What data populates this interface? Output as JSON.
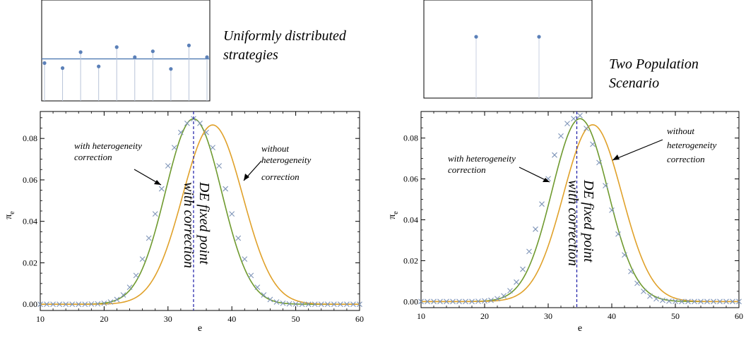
{
  "colors": {
    "with_correction": "#6f9a2f",
    "without_correction": "#e0a12a",
    "markers": "#7f95b8",
    "fixed_point_line": "#1a1aa6",
    "inset_points": "#5b80b8",
    "inset_line": "#4f7ab2"
  },
  "captions": {
    "left": [
      "Uniformly distributed",
      "strategies"
    ],
    "right": [
      "Two Population",
      "Scenario"
    ]
  },
  "annotations": {
    "with": [
      "with heterogeneity",
      "correction"
    ],
    "without": [
      "without",
      "heterogeneity",
      "correction"
    ],
    "fixed_point": [
      "DE fixed point",
      "with correction"
    ]
  },
  "chart_data": [
    {
      "type": "line",
      "panel": "left-main",
      "xlabel": "e",
      "ylabel": "π",
      "ylabel_sub": "e",
      "xlim": [
        10,
        60
      ],
      "ylim": [
        -0.003,
        0.093
      ],
      "xticks": [
        10,
        20,
        30,
        40,
        50,
        60
      ],
      "yticks": [
        0.0,
        0.02,
        0.04,
        0.06,
        0.08
      ],
      "ytick_labels": [
        "0.00",
        "0.02",
        "0.04",
        "0.06",
        "0.08"
      ],
      "fixed_point_x": 34,
      "series": [
        {
          "key": "with_correction",
          "kind": "gaussian",
          "mean": 34,
          "sd": 4.4,
          "peak": 0.0895
        },
        {
          "key": "without_correction",
          "kind": "gaussian",
          "mean": 37,
          "sd": 4.7,
          "peak": 0.0865
        },
        {
          "key": "markers",
          "kind": "points",
          "x": [
            10,
            11,
            12,
            13,
            14,
            15,
            16,
            17,
            18,
            19,
            20,
            21,
            22,
            23,
            24,
            25,
            26,
            27,
            28,
            29,
            30,
            31,
            32,
            33,
            34,
            35,
            36,
            37,
            38,
            39,
            40,
            41,
            42,
            43,
            44,
            45,
            46,
            47,
            48,
            49,
            50,
            51,
            52,
            53,
            54,
            55,
            56,
            57,
            58,
            59,
            60
          ],
          "y": [
            0.0,
            0.0,
            0.0,
            0.0,
            0.0,
            0.0,
            0.0,
            0.0,
            0.0001,
            0.0002,
            0.0005,
            0.0011,
            0.0023,
            0.0045,
            0.0082,
            0.0139,
            0.0218,
            0.0319,
            0.0436,
            0.0557,
            0.0668,
            0.0756,
            0.0829,
            0.0873,
            0.0895,
            0.0873,
            0.0829,
            0.0756,
            0.0668,
            0.0557,
            0.0436,
            0.0319,
            0.0218,
            0.0139,
            0.0082,
            0.0045,
            0.0023,
            0.0011,
            0.0005,
            0.0002,
            0.0001,
            0.0,
            0.0,
            0.0,
            0.0,
            0.0,
            0.0,
            0.0,
            0.0,
            0.0,
            0.0
          ]
        }
      ]
    },
    {
      "type": "line",
      "panel": "right-main",
      "xlabel": "e",
      "ylabel": "π",
      "ylabel_sub": "e",
      "xlim": [
        10,
        60
      ],
      "ylim": [
        -0.003,
        0.093
      ],
      "xticks": [
        10,
        20,
        30,
        40,
        50,
        60
      ],
      "yticks": [
        0.0,
        0.02,
        0.04,
        0.06,
        0.08
      ],
      "ytick_labels": [
        "0.00",
        "0.02",
        "0.04",
        "0.06",
        "0.08"
      ],
      "fixed_point_x": 34.5,
      "series": [
        {
          "key": "with_correction",
          "kind": "gaussian",
          "mean": 35,
          "sd": 4.4,
          "peak": 0.0895
        },
        {
          "key": "without_correction",
          "kind": "gaussian",
          "mean": 37,
          "sd": 4.6,
          "peak": 0.0865
        },
        {
          "key": "markers",
          "kind": "points",
          "x": [
            10,
            11,
            12,
            13,
            14,
            15,
            16,
            17,
            18,
            19,
            20,
            21,
            22,
            23,
            24,
            25,
            26,
            27,
            28,
            29,
            30,
            31,
            32,
            33,
            34,
            35,
            36,
            37,
            38,
            39,
            40,
            41,
            42,
            43,
            44,
            45,
            46,
            47,
            48,
            49,
            50,
            51,
            52,
            53,
            54,
            55,
            56,
            57,
            58,
            59,
            60
          ],
          "y": [
            0.0,
            0.0,
            0.0,
            0.0,
            0.0,
            0.0,
            0.0,
            0.0,
            0.0,
            0.0001,
            0.0003,
            0.0006,
            0.0014,
            0.0028,
            0.0053,
            0.0095,
            0.0158,
            0.0245,
            0.0354,
            0.0477,
            0.0601,
            0.0717,
            0.081,
            0.0871,
            0.0895,
            0.091,
            0.0847,
            0.077,
            0.068,
            0.0567,
            0.0447,
            0.033,
            0.0228,
            0.0147,
            0.0089,
            0.005,
            0.0026,
            0.0013,
            0.0006,
            0.0002,
            0.0001,
            0.0,
            0.0,
            0.0,
            0.0,
            0.0,
            0.0,
            0.0,
            0.0,
            0.0,
            0.0
          ]
        }
      ]
    },
    {
      "type": "scatter",
      "panel": "left-inset",
      "baseline": 0.5,
      "ylim": [
        0,
        1.2
      ],
      "x": [
        1,
        2,
        3,
        4,
        5,
        6,
        7,
        8,
        9,
        10
      ],
      "y": [
        0.45,
        0.39,
        0.58,
        0.41,
        0.64,
        0.52,
        0.59,
        0.38,
        0.66,
        0.52
      ]
    },
    {
      "type": "scatter",
      "panel": "right-inset",
      "ylim": [
        0,
        1.2
      ],
      "x": [
        1,
        2
      ],
      "y": [
        0.75,
        0.75
      ]
    }
  ]
}
